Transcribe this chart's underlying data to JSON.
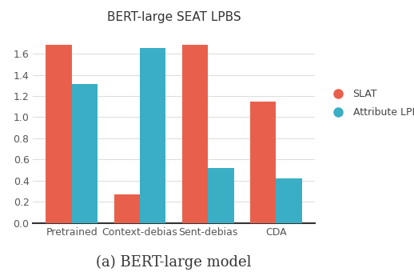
{
  "title": "BERT-large SEAT LPBS",
  "caption": "(a) BERT-large model",
  "categories": [
    "Pretrained",
    "Context-debias",
    "Sent-debias",
    "CDA"
  ],
  "slat_values": [
    1.68,
    0.27,
    1.68,
    1.15
  ],
  "attribute_lpbs_values": [
    1.31,
    1.65,
    0.52,
    0.42
  ],
  "slat_color": "#E8604C",
  "attribute_color": "#3AAEC5",
  "ylim": [
    0,
    1.85
  ],
  "yticks": [
    0,
    0.2,
    0.4,
    0.6,
    0.8,
    1.0,
    1.2,
    1.4,
    1.6
  ],
  "legend_labels": [
    "SLAT",
    "Attribute LPBS"
  ],
  "bar_width": 0.38,
  "title_fontsize": 11,
  "caption_fontsize": 13,
  "tick_fontsize": 9,
  "legend_fontsize": 9
}
